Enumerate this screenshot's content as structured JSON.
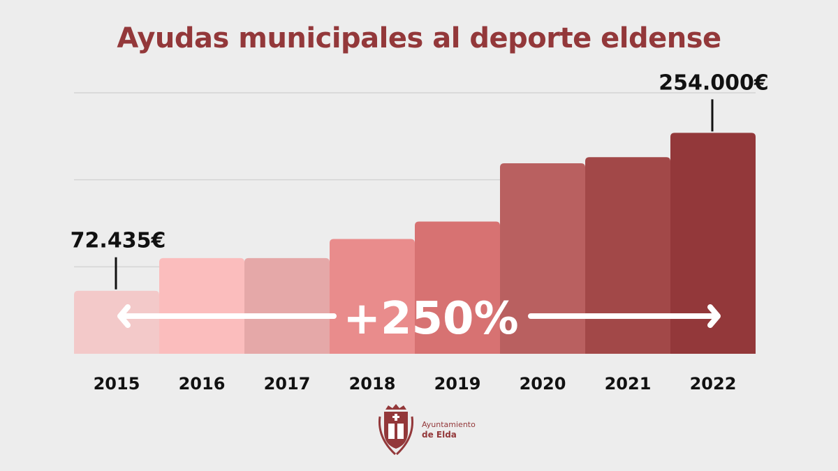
{
  "chart_data": {
    "type": "bar",
    "title": "Ayudas municipales al deporte eldense",
    "categories": [
      "2015",
      "2016",
      "2017",
      "2018",
      "2019",
      "2020",
      "2021",
      "2022"
    ],
    "values": [
      72435,
      110000,
      110000,
      132000,
      152000,
      219000,
      226000,
      254000
    ],
    "bar_colors": [
      "#f3c9c9",
      "#fbbdbd",
      "#e5a8a8",
      "#e98c8c",
      "#d77272",
      "#b96060",
      "#a24848",
      "#93383a"
    ],
    "data_labels": [
      {
        "category": "2015",
        "text": "72.435€"
      },
      {
        "category": "2022",
        "text": "254.000€"
      }
    ],
    "annotation": "+250%",
    "ylim": [
      0,
      300000
    ],
    "gridlines": [
      100000,
      200000,
      300000
    ],
    "grid": true,
    "xlabel": "",
    "ylabel": ""
  },
  "logo": {
    "line1": "Ayuntamiento",
    "line2": "de Elda",
    "color": "#93383a"
  }
}
